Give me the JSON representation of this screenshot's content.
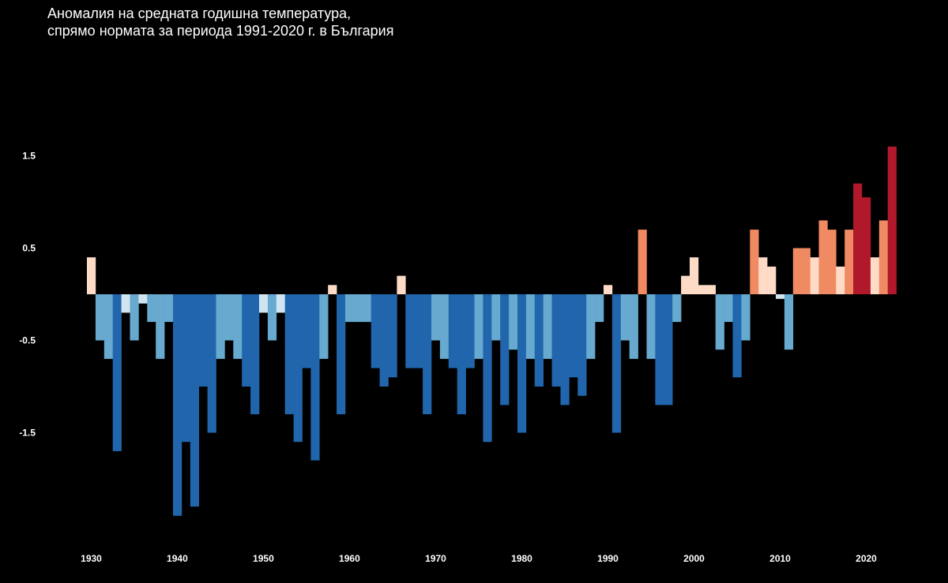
{
  "chart_data": {
    "type": "bar",
    "title": "Аномалия на средната годишна температура,",
    "subtitle": "спрямо нормата за периода 1991-2020 г. в България",
    "xlabel": "",
    "ylabel": "",
    "x": [
      1930,
      1931,
      1932,
      1933,
      1934,
      1935,
      1936,
      1937,
      1938,
      1939,
      1940,
      1941,
      1942,
      1943,
      1944,
      1945,
      1946,
      1947,
      1948,
      1949,
      1950,
      1951,
      1952,
      1953,
      1954,
      1955,
      1956,
      1957,
      1958,
      1959,
      1960,
      1961,
      1962,
      1963,
      1964,
      1965,
      1966,
      1967,
      1968,
      1969,
      1970,
      1971,
      1972,
      1973,
      1974,
      1975,
      1976,
      1977,
      1978,
      1979,
      1980,
      1981,
      1982,
      1983,
      1984,
      1985,
      1986,
      1987,
      1988,
      1989,
      1990,
      1991,
      1992,
      1993,
      1994,
      1995,
      1996,
      1997,
      1998,
      1999,
      2000,
      2001,
      2002,
      2003,
      2004,
      2005,
      2006,
      2007,
      2008,
      2009,
      2010,
      2011,
      2012,
      2013,
      2014,
      2015,
      2016,
      2017,
      2018,
      2019,
      2020,
      2021,
      2022,
      2023
    ],
    "values": [
      0.4,
      -0.5,
      -0.7,
      -1.7,
      -0.2,
      -0.5,
      -0.1,
      -0.3,
      -0.7,
      -0.3,
      -2.4,
      -1.6,
      -2.3,
      -1.0,
      -1.5,
      -0.7,
      -0.5,
      -0.7,
      -1.0,
      -1.3,
      -0.2,
      -0.5,
      -0.2,
      -1.3,
      -1.6,
      -0.8,
      -1.8,
      -0.7,
      0.1,
      -1.3,
      -0.3,
      -0.3,
      -0.3,
      -0.8,
      -1.0,
      -0.9,
      0.2,
      -0.8,
      -0.8,
      -1.3,
      -0.5,
      -0.7,
      -0.8,
      -1.3,
      -0.8,
      -0.7,
      -1.6,
      -0.5,
      -1.2,
      -0.6,
      -1.5,
      -0.7,
      -1.0,
      -0.7,
      -1.0,
      -1.2,
      -0.9,
      -1.1,
      -0.7,
      -0.3,
      0.1,
      -1.5,
      -0.5,
      -0.7,
      0.7,
      -0.7,
      -1.2,
      -1.2,
      -0.3,
      0.2,
      0.4,
      0.1,
      0.1,
      -0.6,
      -0.3,
      -0.9,
      -0.5,
      0.7,
      0.4,
      0.3,
      -0.05,
      -0.6,
      0.5,
      0.5,
      0.4,
      0.8,
      0.7,
      0.3,
      0.7,
      1.2,
      1.05,
      0.4,
      0.8,
      1.6
    ],
    "ylim": [
      -2.4,
      1.6
    ],
    "yticks": [
      1.5,
      0.5,
      -0.5,
      -1.5
    ],
    "ytick_labels": [
      "1.5",
      "0.5",
      "-0.5",
      "-1.5"
    ],
    "xticks": [
      1930,
      1940,
      1950,
      1960,
      1970,
      1980,
      1990,
      2000,
      2010,
      2020
    ],
    "xtick_labels": [
      "1930",
      "1940",
      "1950",
      "1960",
      "1970",
      "1980",
      "1990",
      "2000",
      "2010",
      "2020"
    ],
    "grid": false,
    "legend": "none",
    "color_scale": [
      {
        "min": -99,
        "max": -0.75,
        "color": "#2166ac"
      },
      {
        "min": -0.75,
        "max": -0.25,
        "color": "#67a9cf"
      },
      {
        "min": -0.25,
        "max": 0,
        "color": "#d1e5f0"
      },
      {
        "min": 0,
        "max": 0.5,
        "color": "#fddbc7"
      },
      {
        "min": 0.5,
        "max": 1.0,
        "color": "#ef8a62"
      },
      {
        "min": 1.0,
        "max": 99,
        "color": "#b2182b"
      }
    ],
    "background": "#000000",
    "text_color": "#ffffff"
  }
}
